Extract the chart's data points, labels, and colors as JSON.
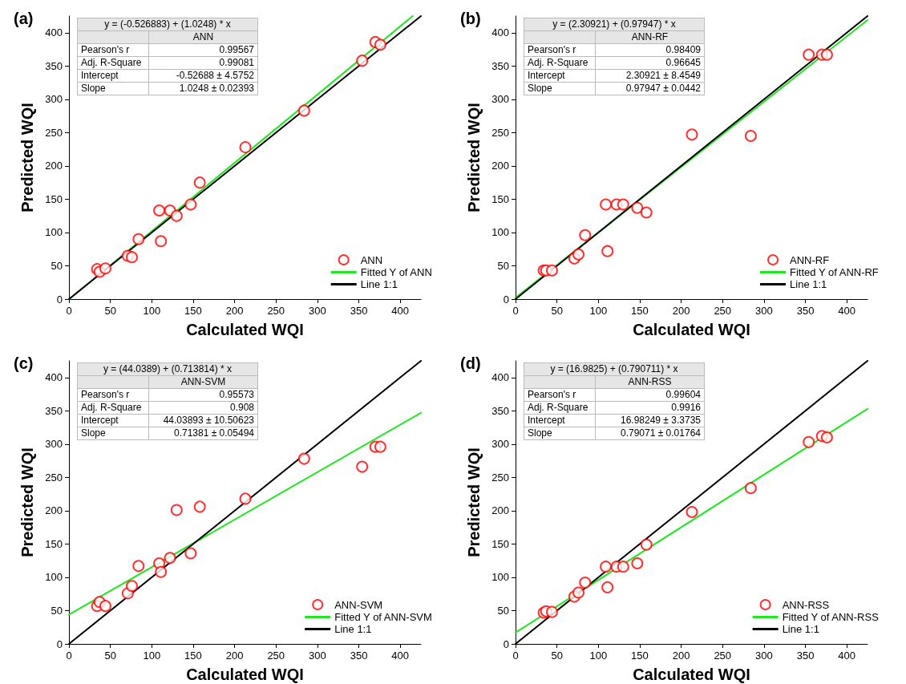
{
  "chart_data": [
    {
      "type": "scatter",
      "title": "(a)",
      "xlabel": "Calculated WQI",
      "ylabel": "Predicted WQI",
      "xlim": [
        0,
        425
      ],
      "ylim": [
        0,
        425
      ],
      "xticks": [
        0,
        50,
        100,
        150,
        200,
        250,
        300,
        350,
        400
      ],
      "yticks": [
        0,
        50,
        100,
        150,
        200,
        250,
        300,
        350,
        400
      ],
      "legend": "bottom right",
      "annotations": [
        "y = (-0.526883) + (1.0248) * x",
        "ANN",
        "Pearson's r",
        "0.99567",
        "Adj. R-Square",
        "0.99081",
        "Intercept",
        "-0.52688 ± 4.5752",
        "Slope",
        "1.0248 ± 0.02393"
      ],
      "series": [
        {
          "name": "ANN",
          "color": "#ff0000",
          "marker": "circle",
          "x": [
            34,
            37,
            44,
            71,
            76,
            84,
            109,
            111,
            122,
            130,
            147,
            158,
            213,
            284,
            354,
            370,
            376
          ],
          "values": [
            45,
            41,
            46,
            65,
            63,
            90,
            133,
            87,
            133,
            125,
            142,
            175,
            228,
            283,
            358,
            386,
            382
          ]
        },
        {
          "name": "Fitted Y of ANN",
          "type": "line",
          "color": "#22e622",
          "marker": "none",
          "x": [
            0.5,
            415
          ],
          "values": [
            0,
            425
          ]
        },
        {
          "name": "Line 1:1",
          "type": "line",
          "color": "#000000",
          "x": [
            0,
            425
          ],
          "values": [
            0,
            425
          ]
        }
      ]
    },
    {
      "type": "scatter",
      "title": "(b)",
      "xlabel": "Calculated WQI",
      "ylabel": "Predicted WQI",
      "xlim": [
        0,
        425
      ],
      "ylim": [
        0,
        425
      ],
      "xticks": [
        0,
        50,
        100,
        150,
        200,
        250,
        300,
        350,
        400
      ],
      "yticks": [
        0,
        50,
        100,
        150,
        200,
        250,
        300,
        350,
        400
      ],
      "legend": "bottom right",
      "annotations": [
        "y = (2.30921) + (0.97947) * x",
        "ANN-RF",
        "Pearson's r",
        "0.98409",
        "Adj. R-Square",
        "0.96645",
        "Intercept",
        "2.30921 ± 8.4549",
        "Slope",
        "0.97947 ± 0.0442"
      ],
      "series": [
        {
          "name": "ANN-RF",
          "color": "#ff0000",
          "marker": "circle",
          "x": [
            34,
            37,
            44,
            71,
            76,
            84,
            109,
            111,
            122,
            130,
            147,
            158,
            213,
            284,
            354,
            370,
            376
          ],
          "values": [
            43,
            43,
            43,
            61,
            67,
            96,
            142,
            72,
            142,
            142,
            137,
            130,
            247,
            245,
            367,
            367,
            367
          ]
        },
        {
          "name": "Fitted Y of ANN-RF",
          "type": "line",
          "color": "#22e622",
          "marker": "none",
          "x": [
            0,
            425
          ],
          "values": [
            2,
            419
          ]
        },
        {
          "name": "Line 1:1",
          "type": "line",
          "color": "#000000",
          "x": [
            0,
            425
          ],
          "values": [
            0,
            425
          ]
        }
      ]
    },
    {
      "type": "scatter",
      "title": "(c)",
      "xlabel": "Calculated WQI",
      "ylabel": "Predicted WQI",
      "xlim": [
        0,
        425
      ],
      "ylim": [
        0,
        425
      ],
      "xticks": [
        0,
        50,
        100,
        150,
        200,
        250,
        300,
        350,
        400
      ],
      "yticks": [
        0,
        50,
        100,
        150,
        200,
        250,
        300,
        350,
        400
      ],
      "legend": "bottom right",
      "annotations": [
        "y = (44.0389) + (0.713814) * x",
        "ANN-SVM",
        "Pearson's r",
        "0.95573",
        "Adj. R-Square",
        "0.908",
        "Intercept",
        "44.03893 ± 10.50623",
        "Slope",
        "0.71381 ± 0.05494"
      ],
      "series": [
        {
          "name": "ANN-SVM",
          "color": "#ff0000",
          "marker": "circle",
          "x": [
            34,
            37,
            44,
            71,
            76,
            84,
            109,
            111,
            122,
            130,
            147,
            158,
            213,
            284,
            354,
            370,
            376
          ],
          "values": [
            57,
            63,
            57,
            76,
            87,
            117,
            121,
            108,
            129,
            201,
            136,
            206,
            218,
            278,
            266,
            296,
            296
          ]
        },
        {
          "name": "Fitted Y of ANN-SVM",
          "type": "line",
          "color": "#22e622",
          "marker": "none",
          "x": [
            0,
            425
          ],
          "values": [
            44,
            347
          ]
        },
        {
          "name": "Line 1:1",
          "type": "line",
          "color": "#000000",
          "x": [
            0,
            425
          ],
          "values": [
            0,
            425
          ]
        }
      ]
    },
    {
      "type": "scatter",
      "title": "(d)",
      "xlabel": "Calculated WQI",
      "ylabel": "Predicted WQI",
      "xlim": [
        0,
        425
      ],
      "ylim": [
        0,
        425
      ],
      "xticks": [
        0,
        50,
        100,
        150,
        200,
        250,
        300,
        350,
        400
      ],
      "yticks": [
        0,
        50,
        100,
        150,
        200,
        250,
        300,
        350,
        400
      ],
      "legend": "bottom right",
      "annotations": [
        "y = (16.9825) + (0.790711) * x",
        "ANN-RSS",
        "Pearson's r",
        "0.99604",
        "Adj. R-Square",
        "0.9916",
        "Intercept",
        "16.98249 ± 3.3735",
        "Slope",
        "0.79071 ± 0.01764"
      ],
      "series": [
        {
          "name": "ANN-RSS",
          "color": "#ff0000",
          "marker": "circle",
          "x": [
            34,
            37,
            44,
            71,
            76,
            84,
            109,
            111,
            122,
            130,
            147,
            158,
            213,
            284,
            354,
            370,
            376
          ],
          "values": [
            47,
            49,
            48,
            71,
            77,
            92,
            116,
            85,
            116,
            116,
            121,
            149,
            198,
            234,
            303,
            312,
            310
          ]
        },
        {
          "name": "Fitted Y of ANN-RSS",
          "type": "line",
          "color": "#22e622",
          "marker": "none",
          "x": [
            0,
            425
          ],
          "values": [
            17,
            353
          ]
        },
        {
          "name": "Line 1:1",
          "type": "line",
          "color": "#000000",
          "x": [
            0,
            425
          ],
          "values": [
            0,
            425
          ]
        }
      ]
    }
  ]
}
